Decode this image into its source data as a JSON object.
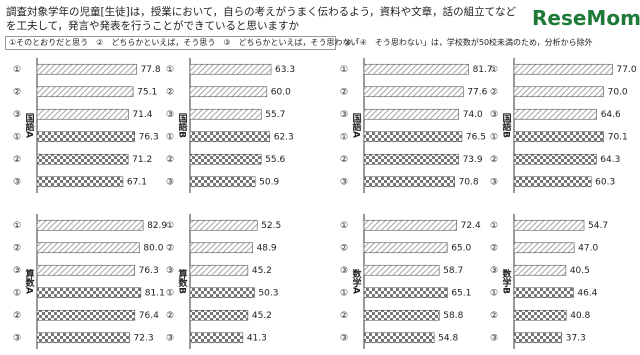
{
  "header": {
    "title": "調査対象学年の児童[生徒]は，授業において，自らの考えがうまく伝わるよう，資料や文章，話の組立てなどを工夫して，発言や発表を行うことができていると思いますか",
    "legend": "①そのとおりだと思う　②　どちらかといえば，そう思う　③　どちらかといえば，そう思わない",
    "note": "※「④　そう思わない」は，学校数が50校未満のため，分析から除外",
    "logo": "ReseMom"
  },
  "chart_data": [
    {
      "type": "bar",
      "title": "国語A",
      "categories": [
        "①",
        "②",
        "③",
        "①",
        "②",
        "③"
      ],
      "values": [
        77.8,
        75.1,
        71.4,
        76.3,
        71.2,
        67.1
      ],
      "value_labels": [
        "77.8",
        "75.1",
        "71.4",
        "76.3",
        "71.2",
        "67.1"
      ],
      "xlim": [
        0,
        100
      ]
    },
    {
      "type": "bar",
      "title": "国語B",
      "categories": [
        "①",
        "②",
        "③",
        "①",
        "②",
        "③"
      ],
      "values": [
        63.3,
        60.0,
        55.7,
        62.3,
        55.6,
        50.9
      ],
      "value_labels": [
        "63.3",
        "60.0",
        "55.7",
        "62.3",
        "55.6",
        "50.9"
      ],
      "xlim": [
        0,
        100
      ]
    },
    {
      "type": "bar",
      "title": "国語A",
      "categories": [
        "①",
        "②",
        "③",
        "①",
        "②",
        "③"
      ],
      "values": [
        81.7,
        77.6,
        74.0,
        76.5,
        73.9,
        70.8
      ],
      "value_labels": [
        "81.7",
        "77.6",
        "74.0",
        "76.5",
        "73.9",
        "70.8"
      ],
      "xlim": [
        0,
        100
      ]
    },
    {
      "type": "bar",
      "title": "国語B",
      "categories": [
        "①",
        "②",
        "③",
        "①",
        "②",
        "③"
      ],
      "values": [
        77.0,
        70.0,
        64.6,
        70.1,
        64.3,
        60.3
      ],
      "value_labels": [
        "77.0",
        "70.0",
        "64.6",
        "70.1",
        "64.3",
        "60.3"
      ],
      "xlim": [
        0,
        100
      ]
    },
    {
      "type": "bar",
      "title": "算数A",
      "categories": [
        "①",
        "②",
        "③",
        "①",
        "②",
        "③"
      ],
      "values": [
        82.9,
        80.0,
        76.3,
        81.1,
        76.4,
        72.3
      ],
      "value_labels": [
        "82.9",
        "80.0",
        "76.3",
        "81.1",
        "76.4",
        "72.3"
      ],
      "xlim": [
        0,
        100
      ]
    },
    {
      "type": "bar",
      "title": "算数B",
      "categories": [
        "①",
        "②",
        "③",
        "①",
        "②",
        "③"
      ],
      "values": [
        52.5,
        48.9,
        45.2,
        50.3,
        45.2,
        41.3
      ],
      "value_labels": [
        "52.5",
        "48.9",
        "45.2",
        "50.3",
        "45.2",
        "41.3"
      ],
      "xlim": [
        0,
        100
      ]
    },
    {
      "type": "bar",
      "title": "数学A",
      "categories": [
        "①",
        "②",
        "③",
        "①",
        "②",
        "③"
      ],
      "values": [
        72.4,
        65.0,
        58.7,
        65.1,
        58.8,
        54.8
      ],
      "value_labels": [
        "72.4",
        "65.0",
        "58.7",
        "65.1",
        "58.8",
        "54.8"
      ],
      "xlim": [
        0,
        100
      ]
    },
    {
      "type": "bar",
      "title": "数学B",
      "categories": [
        "①",
        "②",
        "③",
        "①",
        "②",
        "③"
      ],
      "values": [
        54.7,
        47.0,
        40.5,
        46.4,
        40.8,
        37.3
      ],
      "value_labels": [
        "54.7",
        "47.0",
        "40.5",
        "46.4",
        "40.8",
        "37.3"
      ],
      "xlim": [
        0,
        100
      ]
    }
  ]
}
